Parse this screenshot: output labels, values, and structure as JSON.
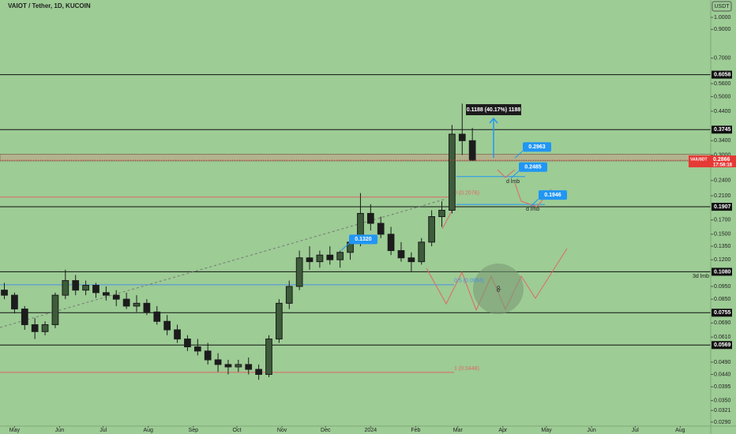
{
  "chart_data": {
    "type": "candlestick",
    "title": "VAIOT / Tether, 1D, KUCOIN",
    "currency": "USDT",
    "symbol": "VAIUSDT",
    "last_price_time": "17:58:18",
    "log_scale": true,
    "candle_color": "#1c1c1c",
    "x": [
      -7,
      0,
      7,
      14,
      21,
      28,
      35,
      42,
      49,
      56,
      63,
      70,
      77,
      84,
      91,
      98,
      105,
      112,
      119,
      126,
      133,
      140,
      147,
      154,
      161,
      168,
      175,
      182,
      189,
      196,
      203,
      210,
      217,
      224,
      231,
      238,
      245,
      252,
      259,
      266,
      273,
      280,
      287,
      294,
      301,
      308,
      315
    ],
    "open": [
      0.092,
      0.088,
      0.078,
      0.068,
      0.064,
      0.068,
      0.088,
      0.1,
      0.092,
      0.096,
      0.09,
      0.088,
      0.085,
      0.08,
      0.082,
      0.076,
      0.07,
      0.065,
      0.06,
      0.056,
      0.054,
      0.05,
      0.048,
      0.047,
      0.048,
      0.046,
      0.044,
      0.06,
      0.082,
      0.095,
      0.122,
      0.118,
      0.125,
      0.12,
      0.128,
      0.14,
      0.18,
      0.165,
      0.15,
      0.13,
      0.122,
      0.118,
      0.14,
      0.175,
      0.185,
      0.36,
      0.34
    ],
    "high": [
      0.098,
      0.09,
      0.08,
      0.072,
      0.07,
      0.09,
      0.11,
      0.105,
      0.1,
      0.098,
      0.095,
      0.092,
      0.09,
      0.088,
      0.085,
      0.08,
      0.074,
      0.068,
      0.062,
      0.06,
      0.058,
      0.053,
      0.05,
      0.05,
      0.051,
      0.048,
      0.062,
      0.085,
      0.1,
      0.13,
      0.135,
      0.13,
      0.135,
      0.13,
      0.145,
      0.215,
      0.195,
      0.175,
      0.16,
      0.14,
      0.128,
      0.145,
      0.185,
      0.2,
      0.39,
      0.47,
      0.38
    ],
    "low": [
      0.085,
      0.075,
      0.065,
      0.06,
      0.062,
      0.066,
      0.085,
      0.088,
      0.088,
      0.086,
      0.084,
      0.08,
      0.078,
      0.076,
      0.074,
      0.068,
      0.062,
      0.058,
      0.054,
      0.052,
      0.048,
      0.045,
      0.044,
      0.045,
      0.044,
      0.042,
      0.043,
      0.058,
      0.078,
      0.092,
      0.11,
      0.112,
      0.115,
      0.112,
      0.12,
      0.135,
      0.155,
      0.145,
      0.125,
      0.118,
      0.108,
      0.115,
      0.135,
      0.16,
      0.18,
      0.3,
      0.285
    ],
    "close": [
      0.088,
      0.078,
      0.068,
      0.064,
      0.068,
      0.088,
      0.1,
      0.092,
      0.096,
      0.09,
      0.088,
      0.085,
      0.08,
      0.082,
      0.076,
      0.07,
      0.065,
      0.06,
      0.056,
      0.054,
      0.05,
      0.048,
      0.047,
      0.048,
      0.046,
      0.044,
      0.06,
      0.082,
      0.095,
      0.122,
      0.118,
      0.125,
      0.12,
      0.128,
      0.14,
      0.18,
      0.165,
      0.15,
      0.13,
      0.122,
      0.118,
      0.14,
      0.175,
      0.185,
      0.36,
      0.34,
      0.2866
    ],
    "xlim": [
      -10,
      479
    ],
    "xticks": [
      {
        "value": 0,
        "label": "May"
      },
      {
        "value": 31,
        "label": "Jun"
      },
      {
        "value": 61,
        "label": "Jul"
      },
      {
        "value": 92,
        "label": "Aug"
      },
      {
        "value": 123,
        "label": "Sep"
      },
      {
        "value": 153,
        "label": "Oct"
      },
      {
        "value": 184,
        "label": "Nov"
      },
      {
        "value": 214,
        "label": "Dec"
      },
      {
        "value": 245,
        "label": "2024"
      },
      {
        "value": 276,
        "label": "Feb"
      },
      {
        "value": 305,
        "label": "Mar"
      },
      {
        "value": 336,
        "label": "Apr"
      },
      {
        "value": 366,
        "label": "May"
      },
      {
        "value": 397,
        "label": "Jun"
      },
      {
        "value": 427,
        "label": "Jul"
      },
      {
        "value": 458,
        "label": "Aug"
      }
    ],
    "ylim": [
      0.028,
      1.164
    ],
    "yticks": [
      {
        "value": 1,
        "label": "1.0000"
      },
      {
        "value": 0.9,
        "label": "0.9000"
      },
      {
        "value": 0.7,
        "label": "0.7000"
      },
      {
        "value": 0.56,
        "label": "0.5600"
      },
      {
        "value": 0.5,
        "label": "0.5000"
      },
      {
        "value": 0.44,
        "label": "0.4400"
      },
      {
        "value": 0.34,
        "label": "0.3400"
      },
      {
        "value": 0.3,
        "label": "0.3000"
      },
      {
        "value": 0.24,
        "label": "0.2400"
      },
      {
        "value": 0.21,
        "label": "0.2100"
      },
      {
        "value": 0.17,
        "label": "0.1700"
      },
      {
        "value": 0.15,
        "label": "0.1500"
      },
      {
        "value": 0.135,
        "label": "0.1350"
      },
      {
        "value": 0.12,
        "label": "0.1200"
      },
      {
        "value": 0.095,
        "label": "0.0950"
      },
      {
        "value": 0.085,
        "label": "0.0850"
      },
      {
        "value": 0.069,
        "label": "0.0690"
      },
      {
        "value": 0.061,
        "label": "0.0610"
      },
      {
        "value": 0.049,
        "label": "0.0490"
      },
      {
        "value": 0.044,
        "label": "0.0440"
      },
      0.0395,
      {
        "value": 0.035,
        "label": "0.0350"
      },
      0.0321,
      {
        "value": 0.029,
        "label": "0.0290"
      }
    ],
    "levels": [
      0.6058,
      0.3745,
      0.1907,
      {
        "value": 0.108,
        "label": "0.1080"
      },
      0.0755,
      0.0569
    ],
    "fib_lines": [
      {
        "label": "0 (0.2076)",
        "value": 0.2076,
        "color": "#e06666"
      },
      {
        "label": "0.5 (0.0964)",
        "value": 0.0964,
        "color": "#4a90e2"
      },
      {
        "label": "1 (0.0448)",
        "value": 0.0448,
        "color": "#e06666"
      }
    ],
    "zone": [
      0.285,
      0.302
    ],
    "callouts": [
      0.2963,
      0.2485,
      0.1946,
      {
        "value": 0.132,
        "label": "0.1320"
      }
    ],
    "measure_label": "0.1188 (40.17%) 1188",
    "notes": [
      "d lmb",
      "d lmb",
      "3d lmb",
      "ob"
    ]
  }
}
